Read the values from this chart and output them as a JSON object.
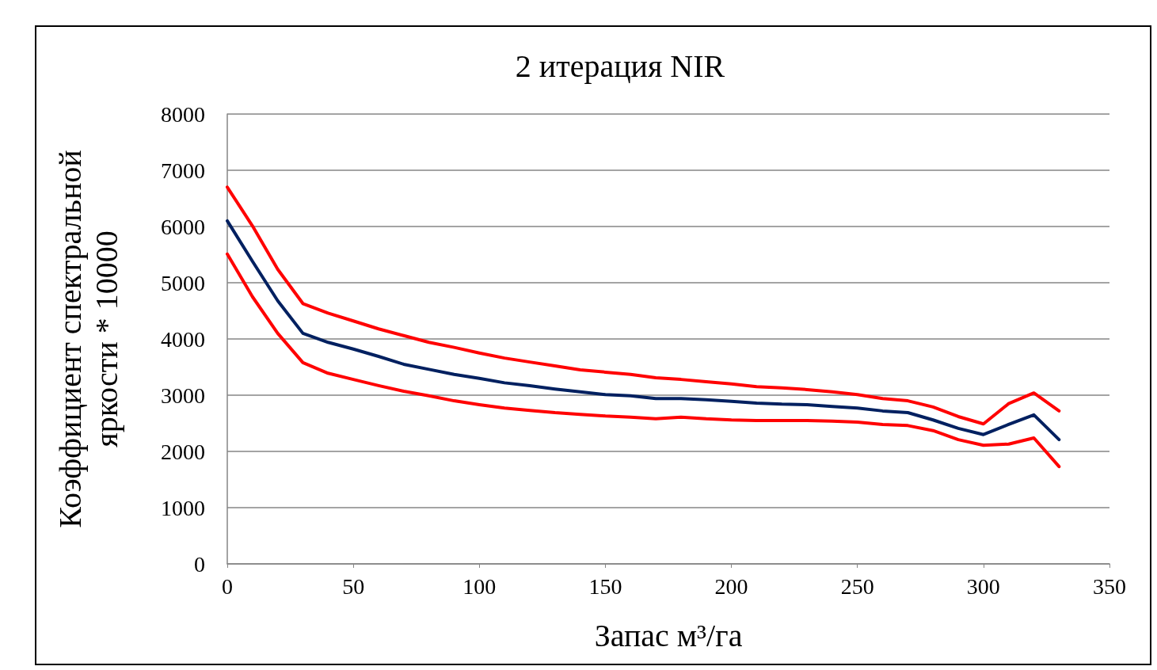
{
  "chart_data": {
    "type": "line",
    "title": "2 итерация NIR",
    "xlabel": "Запас м³/га",
    "ylabel": "Коэффициент спектральной\nяркости * 10000",
    "x": [
      0,
      10,
      20,
      30,
      40,
      50,
      60,
      70,
      80,
      90,
      100,
      110,
      120,
      130,
      140,
      150,
      160,
      170,
      180,
      190,
      200,
      210,
      220,
      230,
      240,
      250,
      260,
      270,
      280,
      290,
      300,
      310,
      320,
      330
    ],
    "series": [
      {
        "color": "#ff0000",
        "values": [
          6700,
          6010,
          5240,
          4630,
          4460,
          4320,
          4180,
          4060,
          3940,
          3850,
          3750,
          3660,
          3590,
          3520,
          3450,
          3410,
          3370,
          3310,
          3280,
          3240,
          3200,
          3150,
          3130,
          3100,
          3060,
          3010,
          2940,
          2900,
          2790,
          2620,
          2490,
          2850,
          3040,
          2720
        ]
      },
      {
        "color": "#002060",
        "values": [
          6100,
          5380,
          4680,
          4100,
          3940,
          3820,
          3690,
          3550,
          3460,
          3370,
          3300,
          3220,
          3170,
          3110,
          3060,
          3010,
          2990,
          2940,
          2940,
          2920,
          2890,
          2860,
          2840,
          2830,
          2800,
          2770,
          2720,
          2690,
          2560,
          2410,
          2300,
          2480,
          2650,
          2210
        ]
      },
      {
        "color": "#ff0000",
        "values": [
          5510,
          4750,
          4100,
          3580,
          3390,
          3280,
          3170,
          3070,
          2990,
          2900,
          2830,
          2770,
          2730,
          2690,
          2660,
          2630,
          2610,
          2580,
          2610,
          2580,
          2560,
          2550,
          2550,
          2550,
          2540,
          2520,
          2480,
          2460,
          2370,
          2210,
          2110,
          2130,
          2240,
          1730
        ]
      }
    ],
    "xlim": [
      0,
      350
    ],
    "xticks": [
      0,
      50,
      100,
      150,
      200,
      250,
      300,
      350
    ],
    "ylim": [
      0,
      8000
    ],
    "yticks": [
      0,
      1000,
      2000,
      3000,
      4000,
      5000,
      6000,
      7000,
      8000
    ],
    "grid": "y",
    "marker": "none",
    "line_style": "solid"
  }
}
